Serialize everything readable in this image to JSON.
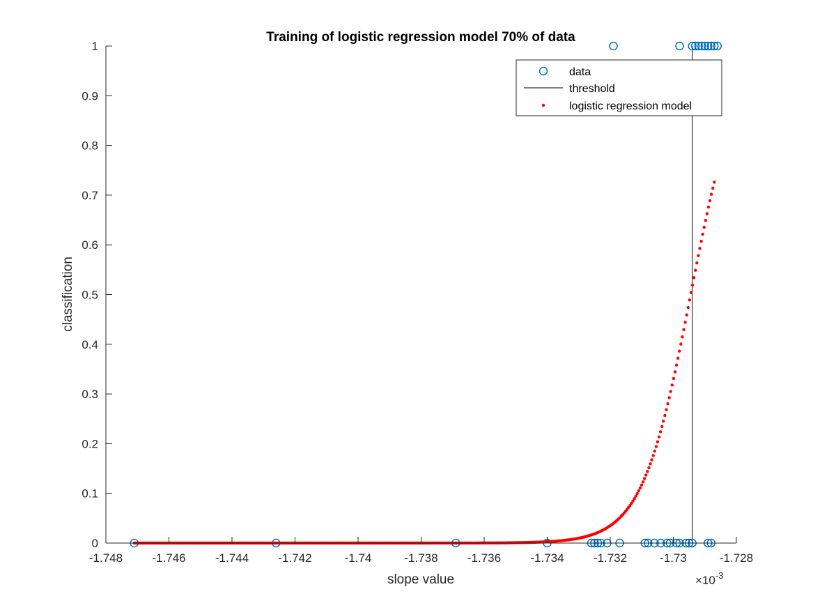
{
  "chart_data": {
    "type": "scatter",
    "title": "Training of logistic regression model 70% of data",
    "xlabel": "slope value",
    "ylabel": "classification",
    "x_exponent_label": "×10",
    "x_exponent_power": "-3",
    "xlim": [
      -1.748,
      -1.728
    ],
    "ylim": [
      0,
      1
    ],
    "x_ticks": [
      -1.748,
      -1.746,
      -1.744,
      -1.742,
      -1.74,
      -1.738,
      -1.736,
      -1.734,
      -1.732,
      -1.73,
      -1.728
    ],
    "x_tick_labels": [
      "-1.748",
      "-1.746",
      "-1.744",
      "-1.742",
      "-1.74",
      "-1.738",
      "-1.736",
      "-1.734",
      "-1.732",
      "-1.73",
      "-1.728"
    ],
    "y_ticks": [
      0,
      0.1,
      0.2,
      0.3,
      0.4,
      0.5,
      0.6,
      0.7,
      0.8,
      0.9,
      1
    ],
    "y_tick_labels": [
      "0",
      "0.1",
      "0.2",
      "0.3",
      "0.4",
      "0.5",
      "0.6",
      "0.7",
      "0.8",
      "0.9",
      "1"
    ],
    "grid": false,
    "legend_position": "top-right",
    "colors": {
      "data": "#0072BD",
      "threshold": "#000000",
      "model": "#FF0000",
      "axis": "#262626"
    },
    "series": [
      {
        "name": "data",
        "kind": "scatter",
        "marker": "circle",
        "points": [
          [
            -1.7471,
            0
          ],
          [
            -1.7426,
            0
          ],
          [
            -1.7369,
            0
          ],
          [
            -1.734,
            0
          ],
          [
            -1.7326,
            0
          ],
          [
            -1.7325,
            0
          ],
          [
            -1.7324,
            0
          ],
          [
            -1.7323,
            0
          ],
          [
            -1.7321,
            0
          ],
          [
            -1.7317,
            0
          ],
          [
            -1.7309,
            0
          ],
          [
            -1.7308,
            0
          ],
          [
            -1.7306,
            0
          ],
          [
            -1.7304,
            0
          ],
          [
            -1.7302,
            0
          ],
          [
            -1.7301,
            0
          ],
          [
            -1.7299,
            0
          ],
          [
            -1.7298,
            0
          ],
          [
            -1.7296,
            0
          ],
          [
            -1.7295,
            0
          ],
          [
            -1.7294,
            0
          ],
          [
            -1.7289,
            0
          ],
          [
            -1.7288,
            0
          ],
          [
            -1.7319,
            1
          ],
          [
            -1.7298,
            1
          ],
          [
            -1.7294,
            1
          ],
          [
            -1.7293,
            1
          ],
          [
            -1.7292,
            1
          ],
          [
            -1.7291,
            1
          ],
          [
            -1.729,
            1
          ],
          [
            -1.7289,
            1
          ],
          [
            -1.7288,
            1
          ],
          [
            -1.7287,
            1
          ],
          [
            -1.7286,
            1
          ]
        ]
      },
      {
        "name": "threshold",
        "kind": "vline",
        "x": -1.7294
      },
      {
        "name": "logistic regression model",
        "kind": "dots",
        "x_start": -1.7471,
        "x_end": -1.7287,
        "count": 400,
        "midpoint": -1.72945,
        "steepness": 1300
      }
    ]
  }
}
